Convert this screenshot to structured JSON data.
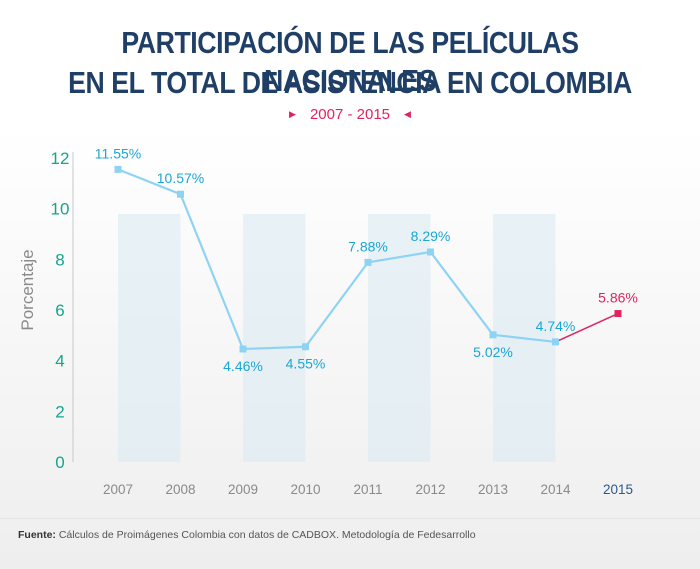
{
  "title_line1": "PARTICIPACIÓN DE LAS PELÍCULAS NACIONALES",
  "title_line2": "EN EL TOTAL DE ASISTENCIA EN COLOMBIA",
  "subtitle": "2007 - 2015",
  "source_label": "Fuente:",
  "source_text": " Cálculos de Proimágenes Colombia con datos de CADBOX. Metodología de Fedesarrollo",
  "colors": {
    "series": "#8fd3f4",
    "highlight": "#e0245e",
    "yticks": "#14a58a",
    "band": "#d9ebf3",
    "label": "#1aa6d6"
  },
  "chart_data": {
    "type": "line",
    "title": "PARTICIPACIÓN DE LAS PELÍCULAS NACIONALES EN EL TOTAL DE ASISTENCIA EN COLOMBIA",
    "subtitle": "2007 - 2015",
    "ylabel": "Porcentaje",
    "xlabel": "",
    "ylim": [
      0,
      12
    ],
    "yticks": [
      0,
      2,
      4,
      6,
      8,
      10,
      12
    ],
    "categories": [
      "2007",
      "2008",
      "2009",
      "2010",
      "2011",
      "2012",
      "2013",
      "2014",
      "2015"
    ],
    "values": [
      11.55,
      10.57,
      4.46,
      4.55,
      7.88,
      8.29,
      5.02,
      4.74,
      5.86
    ],
    "data_labels": [
      "11.55%",
      "10.57%",
      "4.46%",
      "4.55%",
      "7.88%",
      "8.29%",
      "5.02%",
      "4.74%",
      "5.86%"
    ],
    "highlight_index": 8,
    "grid": false
  }
}
